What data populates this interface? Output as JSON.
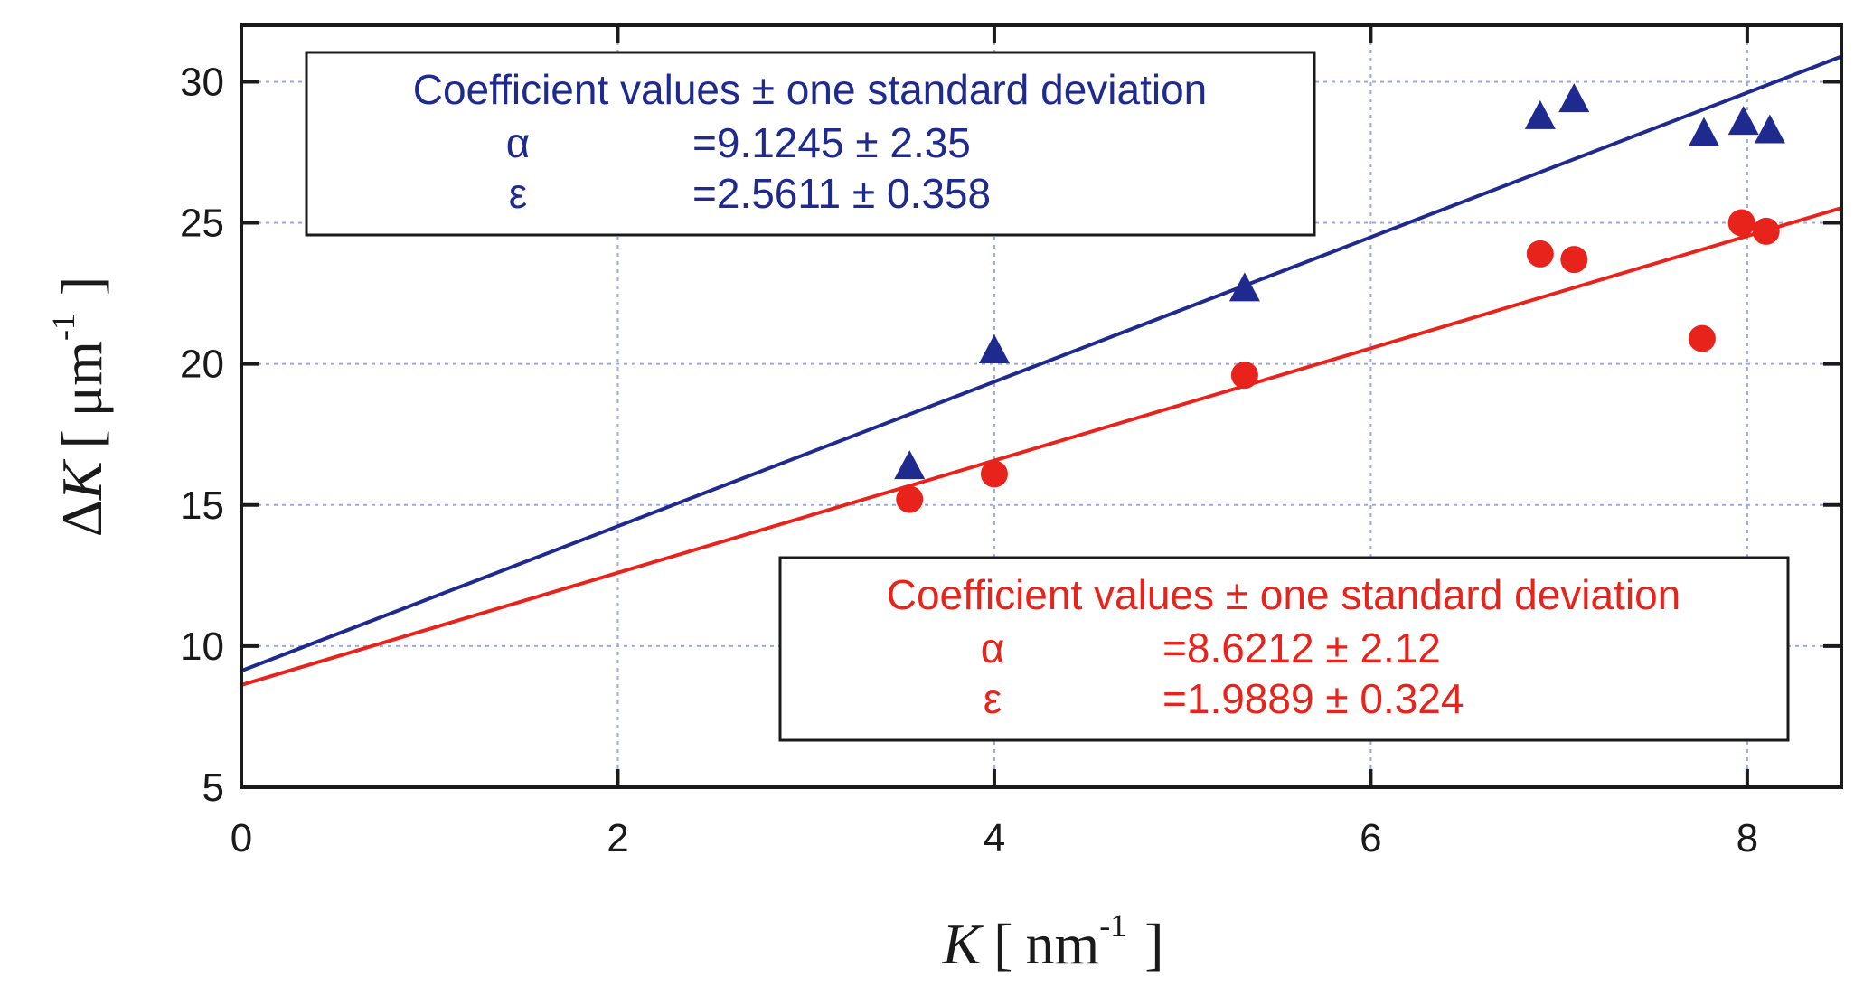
{
  "chart_data": {
    "type": "scatter",
    "xlim": [
      0,
      8.5
    ],
    "ylim": [
      5,
      32
    ],
    "x_ticks": [
      0,
      2,
      4,
      6,
      8
    ],
    "y_ticks": [
      5,
      10,
      15,
      20,
      25,
      30
    ],
    "xlabel": {
      "symbol": "K",
      "open": "[",
      "unit": "nm",
      "sup": "-1",
      "close": "]"
    },
    "ylabel": {
      "delta": "Δ",
      "symbol": "K",
      "open": "[",
      "unit": "μm",
      "sup": "-1",
      "close": "]"
    },
    "grid": true,
    "colors": {
      "blue": "#1f2a8f",
      "red": "#e8231c",
      "axis": "#1a1a1a",
      "grid": "#9aa8e8"
    },
    "series": [
      {
        "name": "blue",
        "marker": "triangle",
        "color": "#1f2a8f",
        "x": [
          3.55,
          4.0,
          5.33,
          6.9,
          7.08,
          7.77,
          7.98,
          8.12
        ],
        "y": [
          16.4,
          20.5,
          22.7,
          28.8,
          29.4,
          28.2,
          28.6,
          28.3
        ],
        "fit": {
          "intercept": 9.1245,
          "slope": 2.5611
        }
      },
      {
        "name": "red",
        "marker": "circle",
        "color": "#e8231c",
        "x": [
          3.55,
          4.0,
          5.33,
          6.9,
          7.08,
          7.76,
          7.97,
          8.1
        ],
        "y": [
          15.2,
          16.1,
          19.6,
          23.9,
          23.7,
          20.9,
          25.0,
          24.7
        ],
        "fit": {
          "intercept": 8.6212,
          "slope": 1.9889
        }
      }
    ],
    "annotations": [
      {
        "series": "blue",
        "title": "Coefficient values ± one standard deviation",
        "rows": [
          {
            "param": "α",
            "value": "=9.1245 ± 2.35"
          },
          {
            "param": "ε",
            "value": "=2.5611 ± 0.358"
          }
        ]
      },
      {
        "series": "red",
        "title": "Coefficient values ± one standard deviation",
        "rows": [
          {
            "param": "α",
            "value": "=8.6212 ± 2.12"
          },
          {
            "param": "ε",
            "value": "=1.9889 ± 0.324"
          }
        ]
      }
    ]
  }
}
